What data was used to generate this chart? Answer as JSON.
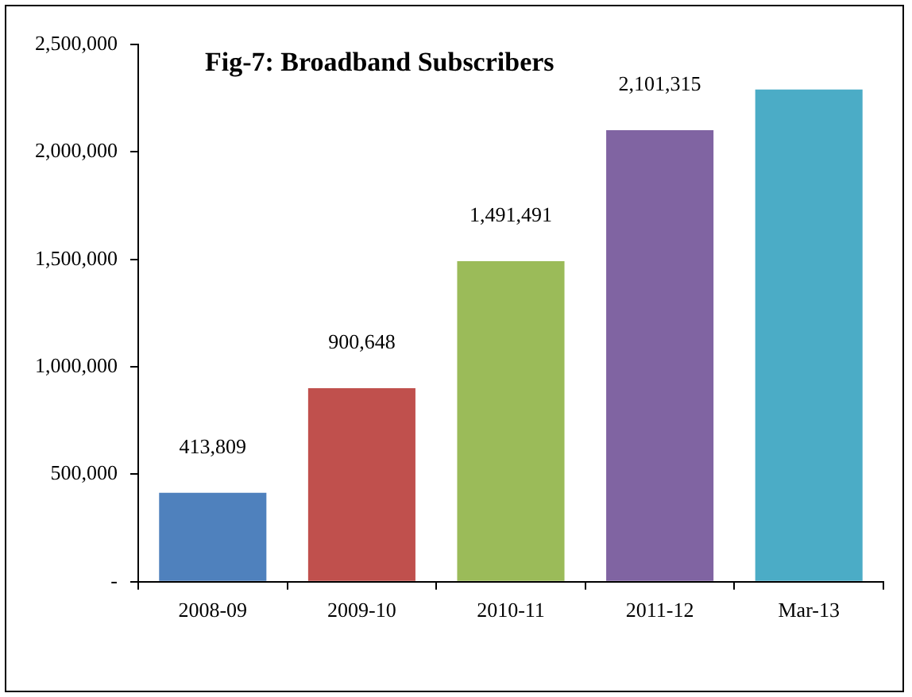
{
  "chart_data": {
    "type": "bar",
    "title": "Fig-7: Broadband Subscribers",
    "categories": [
      "2008-09",
      "2009-10",
      "2010-11",
      "2011-12",
      "Mar-13"
    ],
    "values": [
      413809,
      900648,
      1491491,
      2101315,
      2290000
    ],
    "colors": [
      "#4f81bd",
      "#c0504d",
      "#9bbb59",
      "#8064a2",
      "#4bacc6"
    ],
    "value_labels": [
      "413,809",
      "900,648",
      "1,491,491",
      "2,101,315",
      null
    ],
    "ylim": [
      0,
      2500000
    ],
    "yticks": [
      {
        "value": 0,
        "label": "-"
      },
      {
        "value": 500000,
        "label": "500,000"
      },
      {
        "value": 1000000,
        "label": "1,000,000"
      },
      {
        "value": 1500000,
        "label": "1,500,000"
      },
      {
        "value": 2000000,
        "label": "2,000,000"
      },
      {
        "value": 2500000,
        "label": "2,500,000"
      }
    ],
    "grid": false,
    "legend": false
  }
}
